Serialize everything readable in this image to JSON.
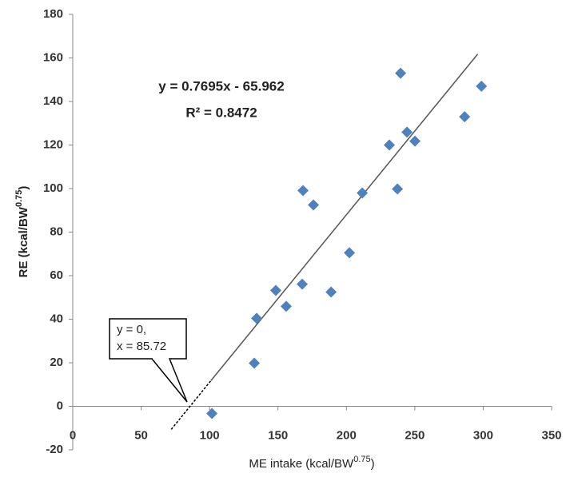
{
  "chart_data": {
    "type": "scatter",
    "x": [
      101.7,
      132.7,
      134.4,
      148.4,
      156,
      167.7,
      168.3,
      175.9,
      188.8,
      202.2,
      211.6,
      231.4,
      237.3,
      239.6,
      244.3,
      250.1,
      286.4,
      298.7
    ],
    "y": [
      -3.3,
      19.8,
      40.4,
      53.2,
      45.9,
      56.1,
      99.1,
      92.5,
      52.5,
      70.5,
      98,
      120,
      99.8,
      153,
      125.9,
      121.8,
      133,
      147
    ],
    "color": "#4f81bd",
    "xlim": [
      0,
      350
    ],
    "xticks": [
      0,
      50,
      100,
      150,
      200,
      250,
      300,
      350
    ],
    "ylim": [
      -20,
      180
    ],
    "yticks": [
      -20,
      0,
      20,
      40,
      60,
      80,
      100,
      120,
      140,
      160,
      180
    ],
    "trendline": {
      "x": [
        101,
        296
      ],
      "y": [
        11.8,
        161.8
      ],
      "color": "#555555"
    },
    "extrapolation": {
      "x": [
        72,
        101
      ],
      "y": [
        -10.6,
        11.8
      ]
    },
    "x_label": {
      "text": "ME intake (kcal/BW",
      "sup": "0.75",
      "end": ")"
    },
    "y_label": {
      "text": "RE (kcal/BW",
      "sup": "0.75",
      "end": ")"
    },
    "equation": "y = 0.7695x - 65.962",
    "r_squared": "R² = 0.8472",
    "callout": [
      "y = 0,",
      "x = 85.72"
    ]
  }
}
